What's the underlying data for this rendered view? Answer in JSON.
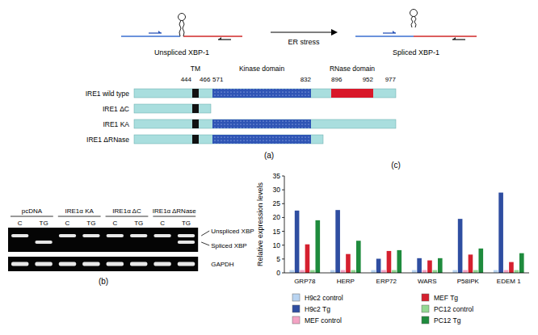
{
  "panel_labels": [
    "(a)",
    "(b)",
    "(c)"
  ],
  "xbp_schematic": {
    "before": "Unspliced XBP-1",
    "stimulus": "ER stress",
    "after": "Spliced XBP-1"
  },
  "domain_map": {
    "landmarks": [
      {
        "label": "TM",
        "start": 444,
        "end": 466
      },
      {
        "label": "Kinase domain",
        "start": 571,
        "end": 832
      },
      {
        "label": "RNase domain",
        "start": 896,
        "end": 952
      }
    ],
    "length": 977,
    "constructs": [
      {
        "name": "IRE1 wild type",
        "domains": [
          "TM",
          "Kinase domain",
          "RNase domain"
        ],
        "truncated_after": null
      },
      {
        "name": "IRE1 ΔC",
        "domains": [
          "TM"
        ],
        "truncated_after": "TM"
      },
      {
        "name": "IRE1 KA",
        "domains": [
          "TM",
          "Kinase domain"
        ],
        "truncated_after": null
      },
      {
        "name": "IRE1 ΔRNase",
        "domains": [
          "TM",
          "Kinase domain"
        ],
        "truncated_after": "Kinase domain"
      }
    ]
  },
  "gel": {
    "markers": [
      "Unspliced XBP",
      "Spliced XBP"
    ],
    "control_band": "GAPDH",
    "groups": [
      {
        "label": "pcDNA",
        "lanes": [
          {
            "label": "C",
            "bands": [
              "Unspliced XBP"
            ]
          },
          {
            "label": "TG",
            "bands": [
              "Spliced XBP"
            ]
          }
        ]
      },
      {
        "label": "IRE1α KA",
        "lanes": [
          {
            "label": "C",
            "bands": [
              "Unspliced XBP"
            ]
          },
          {
            "label": "TG",
            "bands": [
              "Unspliced XBP"
            ]
          }
        ]
      },
      {
        "label": "IRE1α ΔC",
        "lanes": [
          {
            "label": "C",
            "bands": [
              "Unspliced XBP"
            ]
          },
          {
            "label": "TG",
            "bands": [
              "Unspliced XBP"
            ]
          }
        ]
      },
      {
        "label": "IRE1α ΔRNase",
        "lanes": [
          {
            "label": "C",
            "bands": [
              "Unspliced XBP"
            ]
          },
          {
            "label": "TG",
            "bands": [
              "Unspliced XBP",
              "Spliced XBP"
            ]
          }
        ]
      }
    ]
  },
  "chart_data": {
    "type": "bar",
    "ylabel": "Relative expression levels",
    "categories": [
      "GRP78",
      "HERP",
      "ERP72",
      "WARS",
      "P58IPK",
      "EDEM 1"
    ],
    "series": [
      {
        "name": "H9c2 control",
        "color": "#b9d4f1",
        "values": [
          1,
          1,
          1,
          1,
          1,
          1
        ]
      },
      {
        "name": "H9c2 Tg",
        "color": "#2f4ea1",
        "values": [
          22.5,
          22.7,
          5.1,
          5.3,
          19.5,
          29
        ]
      },
      {
        "name": "MEF control",
        "color": "#f4a3c4",
        "values": [
          1,
          1,
          1,
          1,
          1,
          1
        ]
      },
      {
        "name": "MEF Tg",
        "color": "#d5202f",
        "values": [
          10.3,
          6.8,
          7.9,
          4.5,
          6.6,
          3.9
        ]
      },
      {
        "name": "PC12 control",
        "color": "#93d893",
        "values": [
          1,
          1,
          1,
          1,
          1,
          1
        ]
      },
      {
        "name": "PC12 Tg",
        "color": "#1f8b3d",
        "values": [
          19,
          11.6,
          8.2,
          5.3,
          8.8,
          7.1
        ]
      }
    ],
    "ylim": [
      0,
      35
    ],
    "yticks": [
      0,
      5,
      10,
      15,
      20,
      25,
      30,
      35
    ],
    "grid": false,
    "legend": "bottom"
  }
}
